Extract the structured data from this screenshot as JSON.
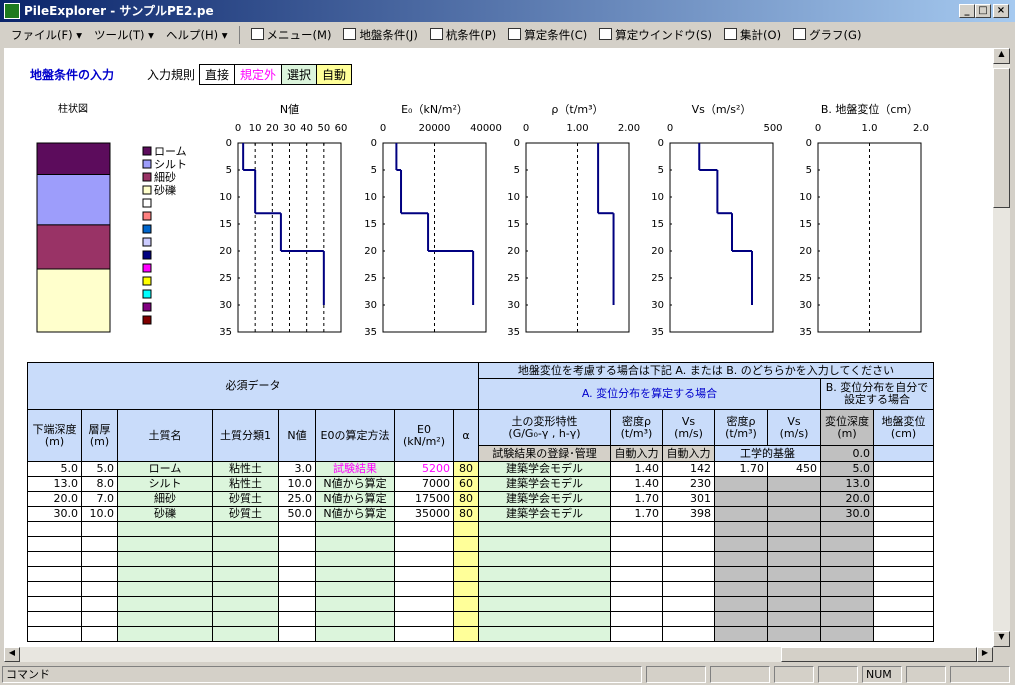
{
  "window": {
    "title": "PileExplorer - サンプルPE2.pe",
    "menus": [
      "ファイル(F)",
      "ツール(T)",
      "ヘルプ(H)"
    ],
    "toolbar": [
      "メニュー(M)",
      "地盤条件(J)",
      "杭条件(P)",
      "算定条件(C)",
      "算定ウインドウ(S)",
      "集計(O)",
      "グラフ(G)"
    ]
  },
  "header": {
    "title": "地盤条件の入力",
    "rule_label": "入力規則",
    "rules": [
      {
        "label": "直接",
        "color": "#000000",
        "background": "#ffffff"
      },
      {
        "label": "規定外",
        "color": "#ff00ff",
        "background": "#ffffff"
      },
      {
        "label": "選択",
        "color": "#000000",
        "background": "#dcf5dc"
      },
      {
        "label": "自動",
        "color": "#000000",
        "background": "#ffff99"
      }
    ]
  },
  "column_chart": {
    "title": "柱状図",
    "legend": [
      {
        "name": "ローム",
        "color": "#5c0c5c"
      },
      {
        "name": "シルト",
        "color": "#9d9dfb"
      },
      {
        "name": "細砂",
        "color": "#993366"
      },
      {
        "name": "砂礫",
        "color": "#ffffcc"
      }
    ],
    "blank_swatches": [
      "#ffffff",
      "#ff8080",
      "#0066cc",
      "#ccccff",
      "#000080",
      "#ff00ff",
      "#ffff00",
      "#00ffff",
      "#800080",
      "#800000"
    ]
  },
  "profiles": {
    "ylim": [
      0,
      35
    ],
    "yticks": [
      0,
      5,
      10,
      15,
      20,
      25,
      30,
      35
    ],
    "line_color": "#000080",
    "charts": [
      {
        "title": "N値",
        "xlim": [
          0,
          60
        ],
        "xticks": [
          0,
          10,
          20,
          30,
          40,
          50,
          60
        ],
        "grid": true
      },
      {
        "title": "E₀（kN/m²）",
        "xlim": [
          0,
          40000
        ],
        "xticks": [
          0,
          20000,
          40000
        ],
        "grid": true
      },
      {
        "title": "ρ（t/m³）",
        "xlim": [
          0,
          2
        ],
        "xticks": [
          0,
          {
            "value": 1,
            "label": "1.00"
          },
          {
            "value": 2,
            "label": "2.00"
          }
        ],
        "grid": true
      },
      {
        "title": "Vs（m/s²）",
        "xlim": [
          0,
          500
        ],
        "xticks": [
          0,
          500
        ],
        "grid": false
      },
      {
        "title": "B. 地盤変位（cm）",
        "xlim": [
          0,
          2
        ],
        "xticks": [
          0,
          {
            "value": 1,
            "label": "1.0"
          },
          {
            "value": 2,
            "label": "2.0"
          }
        ],
        "grid": true
      }
    ]
  },
  "table": {
    "required": "必須データ",
    "notice": "地盤変位を考慮する場合は下記 A. または B. のどちらかを入力してください",
    "group_a": "A. 変位分布を算定する場合",
    "group_b": "B. 変位分布を自分で設定する場合",
    "columns": [
      "下端深度\n(m)",
      "層厚\n(m)",
      "土質名",
      "土質分類1",
      "N値",
      "E0の算定方法",
      "E0\n(kN/m²)",
      "α",
      "土の変形特性\n(G/G₀-γ , h-γ)",
      "密度ρ\n(t/m³)",
      "Vs\n(m/s)",
      "密度ρ\n(t/m³)",
      "Vs\n(m/s)",
      "変位深度\n(m)",
      "地盤変位\n(cm)"
    ],
    "subheaders": {
      "test_results": "試験結果の登録･管理",
      "auto_density": "自動入力",
      "auto_vs": "自動入力",
      "base": "工学的基盤",
      "disp_depth0": "0.0"
    },
    "rows": [
      [
        "5.0",
        "5.0",
        "ローム",
        "粘性土",
        "3.0",
        "試験結果",
        "5200",
        "80",
        "建築学会モデル",
        "1.40",
        "142",
        "1.70",
        "450",
        "5.0",
        null
      ],
      [
        "13.0",
        "8.0",
        "シルト",
        "粘性土",
        "10.0",
        "N値から算定",
        "7000",
        "60",
        "建築学会モデル",
        "1.40",
        "230",
        null,
        null,
        "13.0",
        null
      ],
      [
        "20.0",
        "7.0",
        "細砂",
        "砂質土",
        "25.0",
        "N値から算定",
        "17500",
        "80",
        "建築学会モデル",
        "1.70",
        "301",
        null,
        null,
        "20.0",
        null
      ],
      [
        "30.0",
        "10.0",
        "砂礫",
        "砂質土",
        "50.0",
        "N値から算定",
        "35000",
        "80",
        "建築学会モデル",
        "1.70",
        "398",
        null,
        null,
        "30.0",
        null
      ]
    ]
  },
  "status": {
    "command": "コマンド",
    "num": "NUM"
  }
}
